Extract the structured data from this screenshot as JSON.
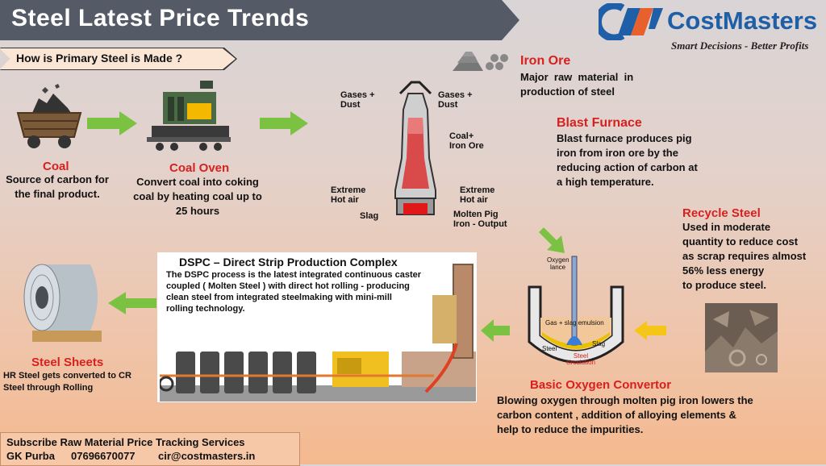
{
  "header": {
    "title": "Steel Latest Price Trends",
    "subtitle": "How is Primary Steel is Made ?"
  },
  "logo": {
    "name": "CostMasters",
    "tagline": "Smart Decisions - Better Profits",
    "color": "#1f5fa8",
    "accent": "#e8612c"
  },
  "coal": {
    "title": "Coal",
    "desc_1": "Source of carbon for",
    "desc_2": "the final product."
  },
  "coal_oven": {
    "title": "Coal Oven",
    "desc_1": "Convert coal into coking",
    "desc_2": "coal by heating coal up to",
    "desc_3": "25 hours"
  },
  "furnace_labels": {
    "gases_left_1": "Gases +",
    "gases_left_2": "Dust",
    "gases_right_1": "Gases +",
    "gases_right_2": "Dust",
    "coal_iron_1": "Coal+",
    "coal_iron_2": "Iron Ore",
    "hot_air_left_1": "Extreme",
    "hot_air_left_2": "Hot air",
    "hot_air_right_1": "Extreme",
    "hot_air_right_2": "Hot air",
    "slag": "Slag",
    "molten_1": "Molten Pig",
    "molten_2": "Iron  - Output"
  },
  "iron_ore": {
    "title": "Iron Ore",
    "desc_1": "Major  raw  material  in",
    "desc_2": "production of steel"
  },
  "blast_furnace": {
    "title": "Blast Furnace",
    "desc_1": "Blast furnace produces pig",
    "desc_2": "iron from iron ore by the",
    "desc_3": "reducing action of carbon at",
    "desc_4": "a high temperature."
  },
  "recycle": {
    "title": "Recycle Steel",
    "desc_1": "Used in moderate",
    "desc_2": "quantity to reduce cost",
    "desc_3": "as scrap requires almost",
    "desc_4": "56% less energy",
    "desc_5": "to produce steel."
  },
  "bof": {
    "title": "Basic Oxygen Convertor",
    "desc_1": "Blowing oxygen through molten pig iron lowers the",
    "desc_2": "carbon content , addition of alloying elements &",
    "desc_3": "help to reduce the impurities.",
    "lbl_oxygen_1": "Oxygen",
    "lbl_oxygen_2": "lance",
    "lbl_emulsion": "Gas + slag emulsion",
    "lbl_steel": "Steel",
    "lbl_slag": "Slag",
    "lbl_circ_1": "Steel",
    "lbl_circ_2": "circulation"
  },
  "dspc": {
    "title": "DSPC – Direct Strip Production Complex",
    "desc_1": "The DSPC process is the latest integrated continuous caster",
    "desc_2": "coupled  ( Molten Steel ) with direct hot rolling  - producing",
    "desc_3": "clean steel from integrated steelmaking with mini-mill",
    "desc_4": "rolling technology."
  },
  "sheets": {
    "title": "Steel Sheets",
    "desc_1": "HR Steel gets converted to CR",
    "desc_2": "Steel through Rolling"
  },
  "footer": {
    "line1": "Subscribe Raw Material Price Tracking Services",
    "name": "GK Purba",
    "phone": "07696670077",
    "email": "cir@costmasters.in"
  },
  "colors": {
    "arrow": "#7cc242",
    "arrow_yellow": "#f5c518",
    "title_red": "#d72020",
    "banner": "#555b66"
  }
}
